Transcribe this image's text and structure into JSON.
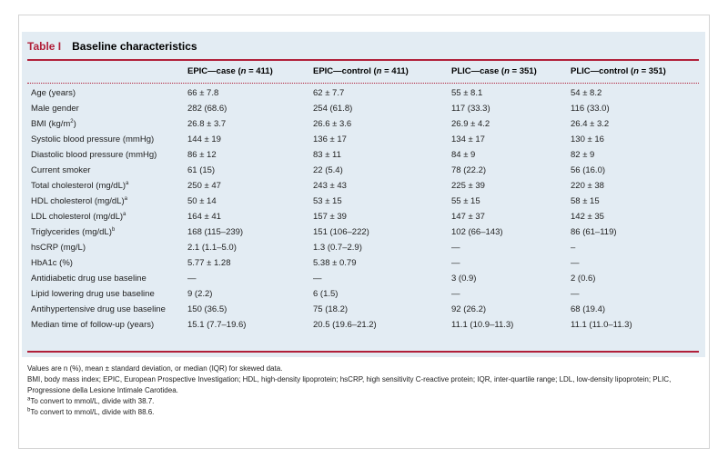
{
  "table": {
    "label": "Table I",
    "title": "Baseline characteristics",
    "headers": [
      "",
      "EPIC—case (n = 411)",
      "EPIC—control (n = 411)",
      "PLIC—case (n = 351)",
      "PLIC—control (n = 351)"
    ],
    "rows": [
      {
        "label": "Age (years)",
        "sup": "",
        "values": [
          "66 ± 7.8",
          "62 ± 7.7",
          "55 ± 8.1",
          "54 ± 8.2"
        ]
      },
      {
        "label": "Male gender",
        "sup": "",
        "values": [
          "282 (68.6)",
          "254 (61.8)",
          "117 (33.3)",
          "116 (33.0)"
        ]
      },
      {
        "label": "BMI (kg/m",
        "sup": "2",
        "tail": ")",
        "values": [
          "26.8 ± 3.7",
          "26.6 ± 3.6",
          "26.9 ± 4.2",
          "26.4 ± 3.2"
        ]
      },
      {
        "label": "Systolic blood pressure (mmHg)",
        "sup": "",
        "values": [
          "144 ± 19",
          "136 ± 17",
          "134 ± 17",
          "130 ± 16"
        ]
      },
      {
        "label": "Diastolic blood pressure (mmHg)",
        "sup": "",
        "values": [
          "86 ± 12",
          "83 ± 11",
          "84 ± 9",
          "82 ± 9"
        ]
      },
      {
        "label": "Current smoker",
        "sup": "",
        "values": [
          "61 (15)",
          "22 (5.4)",
          "78 (22.2)",
          "56 (16.0)"
        ]
      },
      {
        "label": "Total cholesterol (mg/dL)",
        "sup": "a",
        "values": [
          "250 ± 47",
          "243 ± 43",
          "225 ± 39",
          "220 ± 38"
        ]
      },
      {
        "label": "HDL cholesterol (mg/dL)",
        "sup": "a",
        "values": [
          "50 ± 14",
          "53 ± 15",
          "55 ± 15",
          "58 ± 15"
        ]
      },
      {
        "label": "LDL cholesterol (mg/dL)",
        "sup": "a",
        "values": [
          "164 ± 41",
          "157 ± 39",
          "147 ± 37",
          "142 ± 35"
        ]
      },
      {
        "label": "Triglycerides (mg/dL)",
        "sup": "b",
        "values": [
          "168 (115–239)",
          "151 (106–222)",
          "102 (66–143)",
          "86 (61–119)"
        ]
      },
      {
        "label": "hsCRP (mg/L)",
        "sup": "",
        "values": [
          "2.1 (1.1–5.0)",
          "1.3 (0.7–2.9)",
          "—",
          "–"
        ]
      },
      {
        "label": "HbA1c (%)",
        "sup": "",
        "values": [
          "5.77 ± 1.28",
          "5.38 ± 0.79",
          "—",
          "—"
        ]
      },
      {
        "label": "Antidiabetic drug use baseline",
        "sup": "",
        "values": [
          "—",
          "—",
          "3 (0.9)",
          "2 (0.6)"
        ]
      },
      {
        "label": "Lipid lowering drug use baseline",
        "sup": "",
        "values": [
          "9 (2.2)",
          "6 (1.5)",
          "—",
          "—"
        ]
      },
      {
        "label": "Antihypertensive drug use baseline",
        "sup": "",
        "values": [
          "150 (36.5)",
          "75 (18.2)",
          "92 (26.2)",
          "68 (19.4)"
        ]
      },
      {
        "label": "Median time of follow-up (years)",
        "sup": "",
        "values": [
          "15.1 (7.7–19.6)",
          "20.5 (19.6–21.2)",
          "11.1 (10.9–11.3)",
          "11.1 (11.0–11.3)"
        ]
      }
    ]
  },
  "notes": {
    "line1": "Values are n (%), mean ± standard deviation, or median (IQR) for skewed data.",
    "line2": "BMI, body mass index; EPIC, European Prospective Investigation; HDL, high-density lipoprotein; hsCRP, high sensitivity C-reactive protein; IQR, inter-quartile range; LDL, low-density lipoprotein; PLIC, Progressione della Lesione Intimale Carotidea.",
    "line3_sup": "a",
    "line3": "To convert to mmol/L, divide with 38.7.",
    "line4_sup": "b",
    "line4": "To convert to mmol/L, divide with 88.6."
  },
  "colors": {
    "accent": "#b1203a",
    "panel": "#e3ecf3"
  }
}
